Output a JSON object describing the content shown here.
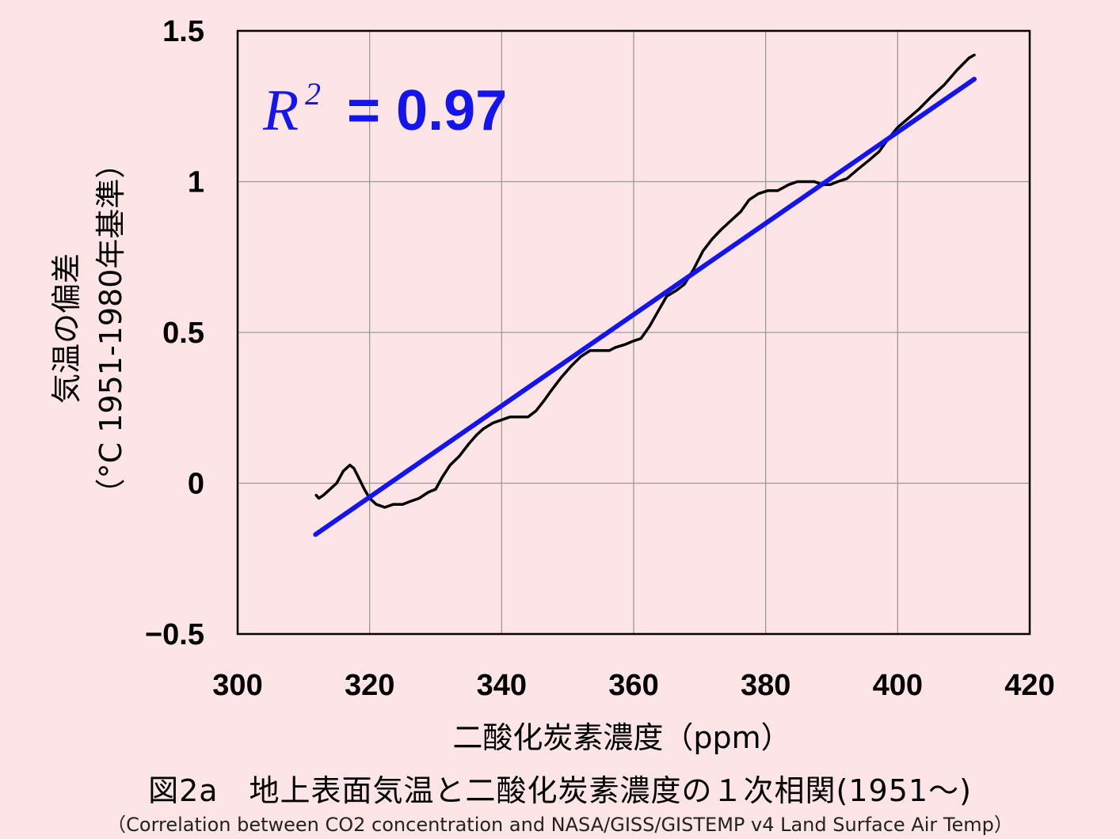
{
  "chart_data": {
    "type": "line",
    "xlabel": "二酸化炭素濃度（ppm）",
    "ylabel_line1": "気温の偏差",
    "ylabel_line2": "（°C  1951-1980年基準）",
    "xlim": [
      300,
      420
    ],
    "ylim": [
      -0.5,
      1.5
    ],
    "xticks": [
      300,
      320,
      340,
      360,
      380,
      400,
      420
    ],
    "xtick_labels": [
      "300",
      "320",
      "340",
      "360",
      "380",
      "400",
      "420"
    ],
    "yticks": [
      -0.5,
      0,
      0.5,
      1,
      1.5
    ],
    "ytick_labels": [
      "−0.5",
      "0",
      "0.5",
      "1",
      "1.5"
    ],
    "grid": true,
    "annotation": {
      "symbol": "R",
      "superscript": "2",
      "value": "= 0.97"
    },
    "series": [
      {
        "color": "#000000",
        "x": [
          311.9,
          312.3,
          313.0,
          314.0,
          315.0,
          316.0,
          317.0,
          317.6,
          318.3,
          319.2,
          320.0,
          321.0,
          322.3,
          323.6,
          325.0,
          326.2,
          327.5,
          328.9,
          330.0,
          331.0,
          332.2,
          333.6,
          335.0,
          336.2,
          337.2,
          338.7,
          340.0,
          341.3,
          342.7,
          344.0,
          345.2,
          346.3,
          347.6,
          349.0,
          350.6,
          352.0,
          353.4,
          354.9,
          356.3,
          357.2,
          358.7,
          359.8,
          361.1,
          362.4,
          363.7,
          365.0,
          366.5,
          367.7,
          369.1,
          370.5,
          371.9,
          373.2,
          374.7,
          376.2,
          377.5,
          378.9,
          380.3,
          381.8,
          383.5,
          384.8,
          386.2,
          387.4,
          388.6,
          389.8,
          390.9,
          392.3,
          393.9,
          395.6,
          397.2,
          398.5,
          400.0,
          401.6,
          403.2,
          405.0,
          407.0,
          409.0,
          410.8,
          411.6
        ],
        "y": [
          -0.04,
          -0.05,
          -0.04,
          -0.02,
          0.0,
          0.04,
          0.06,
          0.05,
          0.02,
          -0.02,
          -0.05,
          -0.07,
          -0.08,
          -0.07,
          -0.07,
          -0.06,
          -0.05,
          -0.03,
          -0.02,
          0.02,
          0.06,
          0.09,
          0.13,
          0.16,
          0.18,
          0.2,
          0.21,
          0.22,
          0.22,
          0.22,
          0.24,
          0.27,
          0.31,
          0.35,
          0.39,
          0.42,
          0.44,
          0.44,
          0.44,
          0.45,
          0.46,
          0.47,
          0.48,
          0.52,
          0.57,
          0.62,
          0.64,
          0.66,
          0.71,
          0.77,
          0.81,
          0.84,
          0.87,
          0.9,
          0.94,
          0.96,
          0.97,
          0.97,
          0.99,
          1.0,
          1.0,
          1.0,
          0.99,
          0.99,
          1.0,
          1.01,
          1.04,
          1.07,
          1.1,
          1.14,
          1.18,
          1.21,
          1.24,
          1.28,
          1.32,
          1.37,
          1.41,
          1.42
        ]
      },
      {
        "color": "#1414ee",
        "x": [
          311.8,
          411.6
        ],
        "y": [
          -0.17,
          1.34
        ]
      }
    ]
  },
  "caption": {
    "title": "図2a　地上表面気温と二酸化炭素濃度の１次相関(1951～)",
    "subtitle": "（Correlation between CO2 concentration and NASA/GISS/GISTEMP v4 Land Surface Air Temp）"
  }
}
